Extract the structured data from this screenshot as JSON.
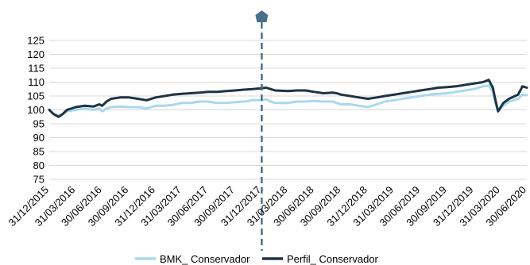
{
  "chart_data": {
    "type": "line",
    "title": "",
    "xlabel": "",
    "ylabel": "",
    "ylim": [
      75,
      125
    ],
    "yticks": [
      75,
      80,
      85,
      90,
      95,
      100,
      105,
      110,
      115,
      120,
      125
    ],
    "xlim": [
      "2015-12-31",
      "2020-06-30"
    ],
    "x_tick_labels": [
      {
        "date": "2015-12-31",
        "label": "31/12/2015"
      },
      {
        "date": "2016-03-31",
        "label": "31/03/2016"
      },
      {
        "date": "2016-06-30",
        "label": "30/06/2016"
      },
      {
        "date": "2016-09-30",
        "label": "30/09/2016"
      },
      {
        "date": "2016-12-31",
        "label": "31/12/2016"
      },
      {
        "date": "2017-03-31",
        "label": "31/03/2017"
      },
      {
        "date": "2017-06-30",
        "label": "30/06/2017"
      },
      {
        "date": "2017-09-30",
        "label": "30/09/2017"
      },
      {
        "date": "2017-12-31",
        "label": "31/12/2017"
      },
      {
        "date": "2018-03-31",
        "label": "31/03/2018"
      },
      {
        "date": "2018-06-30",
        "label": "30/06/2018"
      },
      {
        "date": "2018-09-30",
        "label": "30/09/2018"
      },
      {
        "date": "2018-12-31",
        "label": "31/12/2018"
      },
      {
        "date": "2019-03-31",
        "label": "31/03/2019"
      },
      {
        "date": "2019-06-30",
        "label": "30/06/2019"
      },
      {
        "date": "2019-09-30",
        "label": "30/09/2019"
      },
      {
        "date": "2019-12-31",
        "label": "31/12/2019"
      },
      {
        "date": "2020-03-31",
        "label": "31/03/2020"
      },
      {
        "date": "2020-06-30",
        "label": "30/06/2020"
      }
    ],
    "grid": {
      "horizontal": true,
      "vertical": false
    },
    "legend_position": "bottom",
    "marker": {
      "date": "2017-12-31",
      "style": "dashed",
      "color": "#4a6f8a"
    },
    "series": [
      {
        "name": "BMK_ Conservador",
        "color": "#a8d8ee",
        "points": [
          [
            "2015-12-31",
            100.0
          ],
          [
            "2016-01-15",
            98.5
          ],
          [
            "2016-02-01",
            98.0
          ],
          [
            "2016-02-15",
            98.5
          ],
          [
            "2016-03-01",
            99.5
          ],
          [
            "2016-03-31",
            100.0
          ],
          [
            "2016-04-30",
            100.5
          ],
          [
            "2016-05-31",
            100.0
          ],
          [
            "2016-06-20",
            100.5
          ],
          [
            "2016-06-30",
            99.5
          ],
          [
            "2016-07-15",
            100.5
          ],
          [
            "2016-07-31",
            101.0
          ],
          [
            "2016-08-31",
            101.2
          ],
          [
            "2016-09-30",
            101.0
          ],
          [
            "2016-10-31",
            101.0
          ],
          [
            "2016-11-30",
            100.5
          ],
          [
            "2016-12-31",
            101.5
          ],
          [
            "2017-01-31",
            101.5
          ],
          [
            "2017-02-28",
            101.8
          ],
          [
            "2017-03-31",
            102.5
          ],
          [
            "2017-04-30",
            102.5
          ],
          [
            "2017-05-31",
            103.0
          ],
          [
            "2017-06-30",
            103.0
          ],
          [
            "2017-07-31",
            102.5
          ],
          [
            "2017-08-31",
            102.5
          ],
          [
            "2017-09-30",
            102.8
          ],
          [
            "2017-10-31",
            103.0
          ],
          [
            "2017-11-30",
            103.5
          ],
          [
            "2017-12-31",
            103.5
          ],
          [
            "2018-01-15",
            103.8
          ],
          [
            "2018-01-31",
            103.0
          ],
          [
            "2018-02-15",
            102.5
          ],
          [
            "2018-03-31",
            102.5
          ],
          [
            "2018-04-30",
            103.0
          ],
          [
            "2018-05-31",
            103.0
          ],
          [
            "2018-06-30",
            103.2
          ],
          [
            "2018-07-31",
            103.0
          ],
          [
            "2018-08-31",
            103.0
          ],
          [
            "2018-09-15",
            102.5
          ],
          [
            "2018-09-30",
            102.0
          ],
          [
            "2018-10-31",
            102.0
          ],
          [
            "2018-11-30",
            101.5
          ],
          [
            "2018-12-31",
            101.0
          ],
          [
            "2019-01-31",
            102.0
          ],
          [
            "2019-02-28",
            103.0
          ],
          [
            "2019-03-31",
            103.5
          ],
          [
            "2019-04-30",
            104.0
          ],
          [
            "2019-05-31",
            104.5
          ],
          [
            "2019-06-30",
            105.0
          ],
          [
            "2019-07-31",
            105.5
          ],
          [
            "2019-08-31",
            105.8
          ],
          [
            "2019-09-30",
            106.0
          ],
          [
            "2019-10-31",
            106.5
          ],
          [
            "2019-11-30",
            107.0
          ],
          [
            "2019-12-31",
            107.5
          ],
          [
            "2020-01-31",
            108.5
          ],
          [
            "2020-02-20",
            108.8
          ],
          [
            "2020-03-05",
            106.5
          ],
          [
            "2020-03-15",
            102.0
          ],
          [
            "2020-03-23",
            99.5
          ],
          [
            "2020-04-10",
            101.5
          ],
          [
            "2020-04-30",
            103.0
          ],
          [
            "2020-05-31",
            104.0
          ],
          [
            "2020-06-15",
            105.5
          ],
          [
            "2020-06-30",
            105.3
          ]
        ]
      },
      {
        "name": "Perfil_ Conservador",
        "color": "#1e3344",
        "points": [
          [
            "2015-12-31",
            100.0
          ],
          [
            "2016-01-15",
            98.5
          ],
          [
            "2016-02-01",
            97.5
          ],
          [
            "2016-02-15",
            98.5
          ],
          [
            "2016-03-01",
            100.0
          ],
          [
            "2016-03-31",
            101.0
          ],
          [
            "2016-04-30",
            101.5
          ],
          [
            "2016-05-31",
            101.2
          ],
          [
            "2016-06-20",
            102.0
          ],
          [
            "2016-06-30",
            101.5
          ],
          [
            "2016-07-15",
            103.0
          ],
          [
            "2016-07-31",
            104.0
          ],
          [
            "2016-08-31",
            104.5
          ],
          [
            "2016-09-30",
            104.5
          ],
          [
            "2016-10-31",
            104.0
          ],
          [
            "2016-11-30",
            103.5
          ],
          [
            "2016-12-31",
            104.5
          ],
          [
            "2017-01-31",
            105.0
          ],
          [
            "2017-02-28",
            105.5
          ],
          [
            "2017-03-31",
            105.8
          ],
          [
            "2017-04-30",
            106.0
          ],
          [
            "2017-05-31",
            106.2
          ],
          [
            "2017-06-30",
            106.5
          ],
          [
            "2017-07-31",
            106.5
          ],
          [
            "2017-08-31",
            106.8
          ],
          [
            "2017-09-30",
            107.0
          ],
          [
            "2017-10-31",
            107.3
          ],
          [
            "2017-11-30",
            107.5
          ],
          [
            "2017-12-31",
            107.8
          ],
          [
            "2018-01-15",
            108.0
          ],
          [
            "2018-01-31",
            107.5
          ],
          [
            "2018-02-15",
            107.0
          ],
          [
            "2018-03-31",
            106.8
          ],
          [
            "2018-04-30",
            107.0
          ],
          [
            "2018-05-31",
            107.0
          ],
          [
            "2018-06-30",
            106.5
          ],
          [
            "2018-07-31",
            106.0
          ],
          [
            "2018-08-31",
            106.2
          ],
          [
            "2018-09-15",
            106.0
          ],
          [
            "2018-09-30",
            105.5
          ],
          [
            "2018-10-31",
            105.0
          ],
          [
            "2018-11-30",
            104.5
          ],
          [
            "2018-12-31",
            104.0
          ],
          [
            "2019-01-31",
            104.5
          ],
          [
            "2019-02-28",
            105.0
          ],
          [
            "2019-03-31",
            105.5
          ],
          [
            "2019-04-30",
            106.0
          ],
          [
            "2019-05-31",
            106.5
          ],
          [
            "2019-06-30",
            107.0
          ],
          [
            "2019-07-31",
            107.5
          ],
          [
            "2019-08-31",
            108.0
          ],
          [
            "2019-09-30",
            108.2
          ],
          [
            "2019-10-31",
            108.5
          ],
          [
            "2019-11-30",
            109.0
          ],
          [
            "2019-12-31",
            109.5
          ],
          [
            "2020-01-31",
            110.0
          ],
          [
            "2020-02-20",
            110.8
          ],
          [
            "2020-03-05",
            108.0
          ],
          [
            "2020-03-15",
            103.0
          ],
          [
            "2020-03-23",
            99.5
          ],
          [
            "2020-04-10",
            102.5
          ],
          [
            "2020-04-30",
            104.0
          ],
          [
            "2020-05-31",
            105.5
          ],
          [
            "2020-06-15",
            108.5
          ],
          [
            "2020-06-30",
            108.0
          ]
        ]
      }
    ]
  }
}
